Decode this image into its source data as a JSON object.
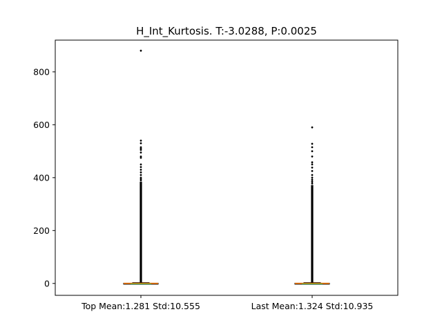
{
  "chart_data": {
    "type": "box",
    "title": "H_Int_Kurtosis. T:-3.0288, P:0.0025",
    "xlabel": "",
    "ylabel": "",
    "ylim": [
      -45,
      920
    ],
    "yticks": [
      0,
      200,
      400,
      600,
      800
    ],
    "categories": [
      "Top Mean:1.281 Std:10.555",
      "Last Mean:1.324 Std:10.935"
    ],
    "series": [
      {
        "category": "Top Mean:1.281 Std:10.555",
        "q1": 0.0,
        "median": 0.3,
        "q3": 1.0,
        "whisker_low": -1.0,
        "whisker_high": 3.0,
        "dense_outliers_range": [
          3.0,
          385.0
        ],
        "outliers": [
          880,
          540,
          530,
          515,
          510,
          505,
          495,
          480,
          475,
          450,
          440,
          430,
          420,
          410,
          400,
          395,
          390
        ]
      },
      {
        "category": "Last Mean:1.324 Std:10.935",
        "q1": 0.0,
        "median": 0.3,
        "q3": 1.0,
        "whisker_low": -1.0,
        "whisker_high": 3.0,
        "dense_outliers_range": [
          3.0,
          372.0
        ],
        "outliers": [
          590,
          528,
          515,
          500,
          480,
          458,
          450,
          438,
          425,
          410,
          400,
          392,
          385,
          378
        ]
      }
    ],
    "colors": {
      "box": "#000000",
      "median": "#ff7f0e",
      "mean": "#2ca02c",
      "outlier": "#000000"
    },
    "grid": false,
    "legend": "none"
  }
}
